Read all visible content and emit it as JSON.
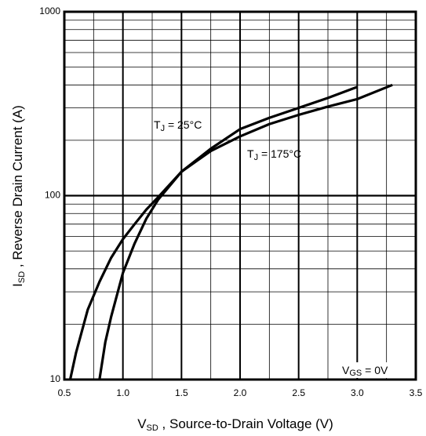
{
  "chart_data": {
    "type": "line",
    "x_label": {
      "main": "V",
      "sub": "SD",
      "rest": " , Source-to-Drain Voltage (V)"
    },
    "y_label": {
      "main": "I",
      "sub": "SD",
      "rest": " , Reverse Drain Current (A)"
    },
    "annotations": [
      {
        "main": "T",
        "sub": "J",
        "rest": " = 25°C"
      },
      {
        "main": "T",
        "sub": "J",
        "rest": " = 175°C"
      },
      {
        "main": "V",
        "sub": "GS",
        "rest": " = 0V"
      }
    ],
    "series": [
      {
        "color": "#000000",
        "x": [
          0.55,
          0.6,
          0.7,
          0.8,
          0.9,
          1.0,
          1.1,
          1.2,
          1.3,
          1.5,
          1.75,
          2.0,
          2.25,
          2.5,
          2.75,
          3.0
        ],
        "values": [
          10,
          14,
          24,
          34,
          46,
          58,
          70,
          84,
          98,
          135,
          180,
          230,
          265,
          300,
          340,
          390
        ]
      },
      {
        "color": "#000000",
        "x": [
          0.8,
          0.85,
          0.9,
          1.0,
          1.1,
          1.2,
          1.3,
          1.5,
          1.75,
          2.0,
          2.25,
          2.5,
          2.75,
          3.0,
          3.3
        ],
        "values": [
          10,
          16,
          22,
          38,
          55,
          75,
          95,
          135,
          175,
          210,
          245,
          275,
          305,
          335,
          400
        ]
      }
    ],
    "xlim": [
      0.5,
      3.5
    ],
    "xticks": [
      0.5,
      {
        "value": 1,
        "label": "1.0"
      },
      1.5,
      {
        "value": 2,
        "label": "2.0"
      },
      2.5,
      {
        "value": 3,
        "label": "3.0"
      },
      3.5
    ],
    "ylim": [
      10,
      1000
    ],
    "yticks": [
      10,
      100,
      1000
    ],
    "y_log": true,
    "grid": true,
    "minor_grid": true
  }
}
